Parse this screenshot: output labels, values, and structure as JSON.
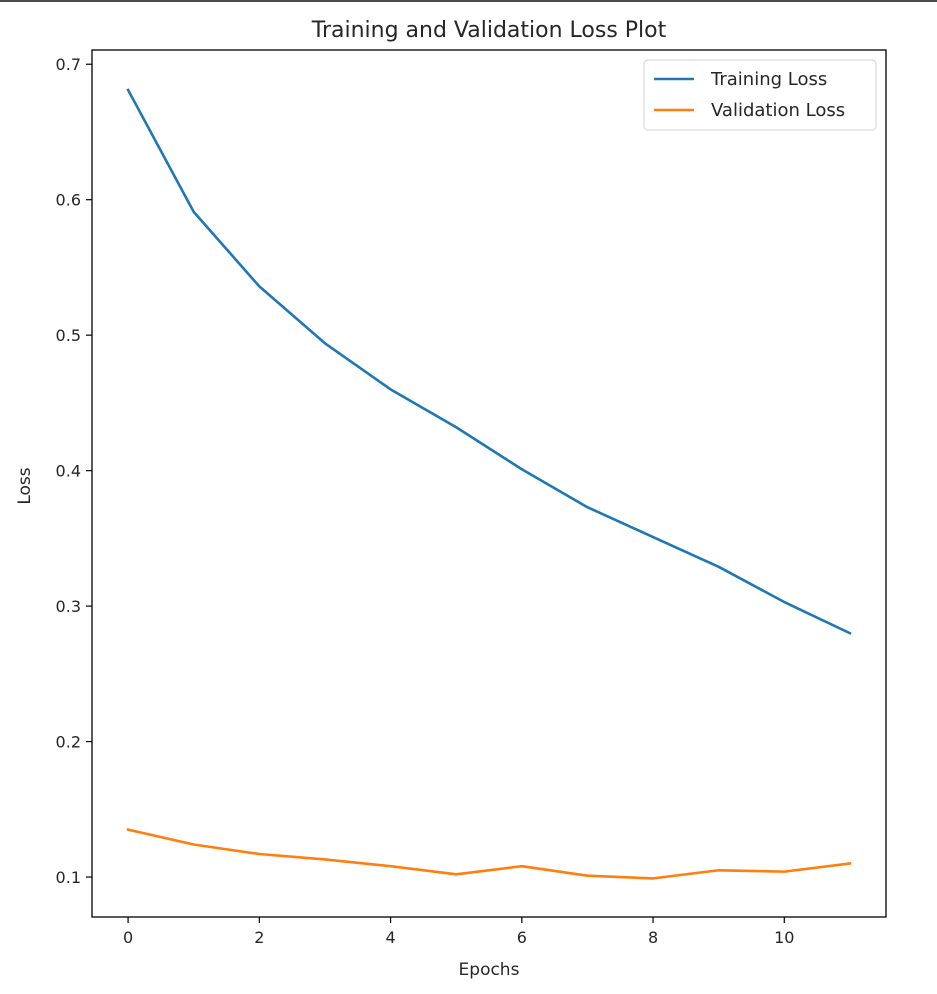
{
  "chart_data": {
    "type": "line",
    "title": "Training and Validation Loss Plot",
    "xlabel": "Epochs",
    "ylabel": "Loss",
    "x": [
      0,
      1,
      2,
      3,
      4,
      5,
      6,
      7,
      8,
      9,
      10,
      11
    ],
    "series": [
      {
        "name": "Training Loss",
        "color": "#1f77b4",
        "values": [
          0.681,
          0.591,
          0.536,
          0.494,
          0.46,
          0.432,
          0.401,
          0.373,
          0.351,
          0.329,
          0.303,
          0.28
        ]
      },
      {
        "name": "Validation Loss",
        "color": "#ff7f0e",
        "values": [
          0.135,
          0.124,
          0.117,
          0.113,
          0.108,
          0.102,
          0.108,
          0.101,
          0.099,
          0.105,
          0.104,
          0.11
        ]
      }
    ],
    "xticks": [
      "0",
      "2",
      "4",
      "6",
      "8",
      "10"
    ],
    "yticks": [
      "0.1",
      "0.2",
      "0.3",
      "0.4",
      "0.5",
      "0.6",
      "0.7"
    ],
    "xlim": [
      -0.55,
      11.55
    ],
    "ylim": [
      0.0705,
      0.7105
    ],
    "grid": false,
    "legend_position": "top-right"
  }
}
